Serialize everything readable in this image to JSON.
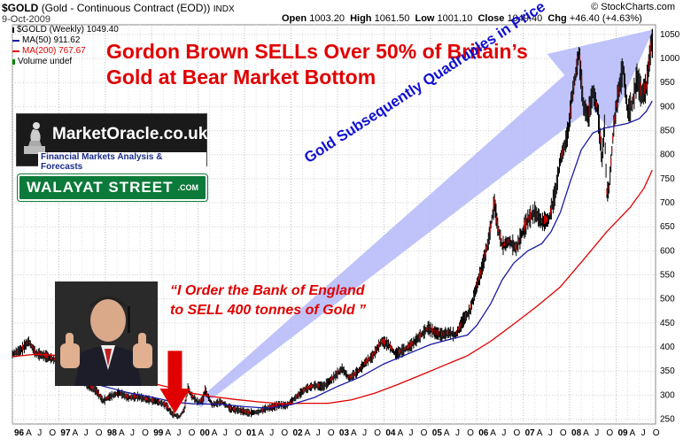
{
  "header": {
    "symbol": "$GOLD",
    "description": "(Gold - Continuous Contract (EOD))",
    "exchange": "INDX",
    "date": "9-Oct-2009",
    "open_label": "Open",
    "open": "1003.20",
    "high_label": "High",
    "high": "1061.50",
    "low_label": "Low",
    "low": "1001.10",
    "close_label": "Close",
    "close": "1049.40",
    "chg_label": "Chg",
    "chg": "+46.40 (+4.63%)",
    "source": "© StockCharts.com"
  },
  "legend": {
    "price": "$GOLD (Weekly) 1049.40",
    "ma50": "MA(50) 911.62",
    "ma200": "MA(200) 767.67",
    "volume": "Volume undef",
    "ma50_color": "#1a1aa0",
    "ma200_color": "#e00000"
  },
  "annotations": {
    "headline_line1": "Gordon Brown SELLs Over 50% of Britain’s",
    "headline_line2": "Gold at Bear Market Bottom",
    "arrow_text": "Gold Subsequently Quadruples in Price",
    "quote_line1": "“I Order the Bank of England",
    "quote_line2": "to SELL 400 tonnes of Gold ”",
    "logo_text": "MarketOracle.co.uk",
    "logo_sub": "Financial Markets Analysis & Forecasts",
    "walayat_text": "WALAYAT STREET",
    "walayat_com": ".COM"
  },
  "chart_data": {
    "type": "line",
    "ylim": [
      240,
      1070
    ],
    "xlim": [
      1996.0,
      2009.85
    ],
    "y_ticks": [
      250,
      300,
      350,
      400,
      450,
      500,
      550,
      600,
      650,
      700,
      750,
      800,
      850,
      900,
      950,
      1000,
      1050
    ],
    "x_ticks": [
      {
        "label": "96",
        "x": 1996.0,
        "major": true
      },
      {
        "label": "A",
        "x": 1996.25,
        "major": false
      },
      {
        "label": "J",
        "x": 1996.5,
        "major": false
      },
      {
        "label": "O",
        "x": 1996.75,
        "major": false
      },
      {
        "label": "97",
        "x": 1997.0,
        "major": true
      },
      {
        "label": "A",
        "x": 1997.25,
        "major": false
      },
      {
        "label": "J",
        "x": 1997.5,
        "major": false
      },
      {
        "label": "O",
        "x": 1997.75,
        "major": false
      },
      {
        "label": "98",
        "x": 1998.0,
        "major": true
      },
      {
        "label": "A",
        "x": 1998.25,
        "major": false
      },
      {
        "label": "J",
        "x": 1998.5,
        "major": false
      },
      {
        "label": "O",
        "x": 1998.75,
        "major": false
      },
      {
        "label": "99",
        "x": 1999.0,
        "major": true
      },
      {
        "label": "A",
        "x": 1999.25,
        "major": false
      },
      {
        "label": "J",
        "x": 1999.5,
        "major": false
      },
      {
        "label": "O",
        "x": 1999.75,
        "major": false
      },
      {
        "label": "00",
        "x": 2000.0,
        "major": true
      },
      {
        "label": "A",
        "x": 2000.25,
        "major": false
      },
      {
        "label": "J",
        "x": 2000.5,
        "major": false
      },
      {
        "label": "O",
        "x": 2000.75,
        "major": false
      },
      {
        "label": "01",
        "x": 2001.0,
        "major": true
      },
      {
        "label": "A",
        "x": 2001.25,
        "major": false
      },
      {
        "label": "J",
        "x": 2001.5,
        "major": false
      },
      {
        "label": "O",
        "x": 2001.75,
        "major": false
      },
      {
        "label": "02",
        "x": 2002.0,
        "major": true
      },
      {
        "label": "A",
        "x": 2002.25,
        "major": false
      },
      {
        "label": "J",
        "x": 2002.5,
        "major": false
      },
      {
        "label": "O",
        "x": 2002.75,
        "major": false
      },
      {
        "label": "03",
        "x": 2003.0,
        "major": true
      },
      {
        "label": "A",
        "x": 2003.25,
        "major": false
      },
      {
        "label": "J",
        "x": 2003.5,
        "major": false
      },
      {
        "label": "O",
        "x": 2003.75,
        "major": false
      },
      {
        "label": "04",
        "x": 2004.0,
        "major": true
      },
      {
        "label": "A",
        "x": 2004.25,
        "major": false
      },
      {
        "label": "J",
        "x": 2004.5,
        "major": false
      },
      {
        "label": "O",
        "x": 2004.75,
        "major": false
      },
      {
        "label": "05",
        "x": 2005.0,
        "major": true
      },
      {
        "label": "A",
        "x": 2005.25,
        "major": false
      },
      {
        "label": "J",
        "x": 2005.5,
        "major": false
      },
      {
        "label": "O",
        "x": 2005.75,
        "major": false
      },
      {
        "label": "06",
        "x": 2006.0,
        "major": true
      },
      {
        "label": "A",
        "x": 2006.25,
        "major": false
      },
      {
        "label": "J",
        "x": 2006.5,
        "major": false
      },
      {
        "label": "O",
        "x": 2006.75,
        "major": false
      },
      {
        "label": "07",
        "x": 2007.0,
        "major": true
      },
      {
        "label": "A",
        "x": 2007.25,
        "major": false
      },
      {
        "label": "J",
        "x": 2007.5,
        "major": false
      },
      {
        "label": "O",
        "x": 2007.75,
        "major": false
      },
      {
        "label": "08",
        "x": 2008.0,
        "major": true
      },
      {
        "label": "A",
        "x": 2008.25,
        "major": false
      },
      {
        "label": "J",
        "x": 2008.5,
        "major": false
      },
      {
        "label": "O",
        "x": 2008.75,
        "major": false
      },
      {
        "label": "09",
        "x": 2009.0,
        "major": true
      },
      {
        "label": "A",
        "x": 2009.25,
        "major": false
      },
      {
        "label": "J",
        "x": 2009.5,
        "major": false
      },
      {
        "label": "O",
        "x": 2009.75,
        "major": false
      }
    ],
    "series": [
      {
        "name": "$GOLD (Weekly)",
        "color": "#000000",
        "points": [
          [
            1996.0,
            385
          ],
          [
            1996.2,
            395
          ],
          [
            1996.35,
            412
          ],
          [
            1996.5,
            387
          ],
          [
            1996.75,
            380
          ],
          [
            1996.95,
            372
          ],
          [
            1997.1,
            350
          ],
          [
            1997.3,
            342
          ],
          [
            1997.5,
            330
          ],
          [
            1997.6,
            323
          ],
          [
            1997.8,
            310
          ],
          [
            1997.95,
            288
          ],
          [
            1998.1,
            297
          ],
          [
            1998.3,
            305
          ],
          [
            1998.5,
            295
          ],
          [
            1998.7,
            297
          ],
          [
            1998.9,
            291
          ],
          [
            1999.1,
            287
          ],
          [
            1999.3,
            280
          ],
          [
            1999.45,
            260
          ],
          [
            1999.6,
            255
          ],
          [
            1999.7,
            270
          ],
          [
            1999.78,
            315
          ],
          [
            1999.85,
            300
          ],
          [
            2000.0,
            285
          ],
          [
            2000.1,
            290
          ],
          [
            2000.15,
            310
          ],
          [
            2000.3,
            280
          ],
          [
            2000.5,
            286
          ],
          [
            2000.7,
            272
          ],
          [
            2000.9,
            268
          ],
          [
            2001.1,
            263
          ],
          [
            2001.3,
            265
          ],
          [
            2001.45,
            272
          ],
          [
            2001.6,
            275
          ],
          [
            2001.75,
            280
          ],
          [
            2001.9,
            278
          ],
          [
            2002.1,
            295
          ],
          [
            2002.3,
            312
          ],
          [
            2002.5,
            320
          ],
          [
            2002.7,
            318
          ],
          [
            2002.9,
            335
          ],
          [
            2003.1,
            355
          ],
          [
            2003.25,
            335
          ],
          [
            2003.45,
            350
          ],
          [
            2003.6,
            368
          ],
          [
            2003.75,
            380
          ],
          [
            2003.95,
            412
          ],
          [
            2004.1,
            405
          ],
          [
            2004.25,
            385
          ],
          [
            2004.45,
            395
          ],
          [
            2004.6,
            405
          ],
          [
            2004.8,
            425
          ],
          [
            2004.95,
            440
          ],
          [
            2005.1,
            430
          ],
          [
            2005.25,
            425
          ],
          [
            2005.4,
            430
          ],
          [
            2005.55,
            425
          ],
          [
            2005.7,
            455
          ],
          [
            2005.85,
            475
          ],
          [
            2005.95,
            510
          ],
          [
            2006.1,
            560
          ],
          [
            2006.25,
            620
          ],
          [
            2006.38,
            700
          ],
          [
            2006.45,
            650
          ],
          [
            2006.55,
            610
          ],
          [
            2006.7,
            620
          ],
          [
            2006.85,
            605
          ],
          [
            2006.95,
            630
          ],
          [
            2007.1,
            665
          ],
          [
            2007.25,
            680
          ],
          [
            2007.4,
            660
          ],
          [
            2007.55,
            665
          ],
          [
            2007.7,
            725
          ],
          [
            2007.8,
            790
          ],
          [
            2007.9,
            820
          ],
          [
            2007.97,
            850
          ],
          [
            2008.05,
            920
          ],
          [
            2008.15,
            980
          ],
          [
            2008.2,
            1010
          ],
          [
            2008.3,
            900
          ],
          [
            2008.4,
            880
          ],
          [
            2008.5,
            930
          ],
          [
            2008.6,
            895
          ],
          [
            2008.7,
            790
          ],
          [
            2008.75,
            860
          ],
          [
            2008.8,
            720
          ],
          [
            2008.85,
            730
          ],
          [
            2008.95,
            860
          ],
          [
            2009.05,
            930
          ],
          [
            2009.15,
            980
          ],
          [
            2009.25,
            890
          ],
          [
            2009.35,
            905
          ],
          [
            2009.45,
            960
          ],
          [
            2009.55,
            925
          ],
          [
            2009.65,
            940
          ],
          [
            2009.72,
            1000
          ],
          [
            2009.78,
            1049.4
          ]
        ]
      },
      {
        "name": "MA(50)",
        "color": "#1a1aa0",
        "points": [
          [
            1997.4,
            340
          ],
          [
            1997.9,
            320
          ],
          [
            1998.5,
            305
          ],
          [
            1999.0,
            296
          ],
          [
            1999.5,
            285
          ],
          [
            1999.9,
            282
          ],
          [
            2000.5,
            281
          ],
          [
            2001.0,
            276
          ],
          [
            2001.5,
            273
          ],
          [
            2002.0,
            280
          ],
          [
            2002.5,
            295
          ],
          [
            2003.0,
            318
          ],
          [
            2003.5,
            338
          ],
          [
            2004.0,
            365
          ],
          [
            2004.5,
            385
          ],
          [
            2005.0,
            405
          ],
          [
            2005.5,
            418
          ],
          [
            2005.8,
            425
          ],
          [
            2006.0,
            445
          ],
          [
            2006.3,
            490
          ],
          [
            2006.55,
            540
          ],
          [
            2006.8,
            575
          ],
          [
            2007.1,
            600
          ],
          [
            2007.4,
            615
          ],
          [
            2007.6,
            640
          ],
          [
            2007.8,
            680
          ],
          [
            2008.0,
            740
          ],
          [
            2008.25,
            810
          ],
          [
            2008.5,
            845
          ],
          [
            2008.75,
            855
          ],
          [
            2009.0,
            860
          ],
          [
            2009.25,
            865
          ],
          [
            2009.5,
            875
          ],
          [
            2009.65,
            890
          ],
          [
            2009.78,
            912
          ]
        ]
      },
      {
        "name": "MA(200)",
        "color": "#e00000",
        "points": [
          [
            1996.0,
            380
          ],
          [
            1996.5,
            385
          ],
          [
            1996.9,
            383
          ],
          [
            1997.3,
            370
          ],
          [
            1997.8,
            355
          ],
          [
            1998.3,
            345
          ],
          [
            1998.8,
            330
          ],
          [
            1999.3,
            318
          ],
          [
            1999.8,
            305
          ],
          [
            2000.3,
            297
          ],
          [
            2000.8,
            291
          ],
          [
            2001.3,
            286
          ],
          [
            2001.8,
            282
          ],
          [
            2002.3,
            283
          ],
          [
            2002.8,
            283
          ],
          [
            2003.3,
            290
          ],
          [
            2003.8,
            304
          ],
          [
            2004.3,
            322
          ],
          [
            2004.8,
            342
          ],
          [
            2005.3,
            362
          ],
          [
            2005.8,
            382
          ],
          [
            2006.3,
            412
          ],
          [
            2006.8,
            448
          ],
          [
            2007.3,
            485
          ],
          [
            2007.8,
            525
          ],
          [
            2008.3,
            582
          ],
          [
            2008.8,
            640
          ],
          [
            2009.3,
            690
          ],
          [
            2009.6,
            730
          ],
          [
            2009.78,
            768
          ]
        ]
      }
    ],
    "markers": {
      "sell_arrow_x": 1999.5,
      "sell_arrow_y_top": 392,
      "sell_arrow_y_bottom": 262,
      "rally_arrow_from": [
        2000.0,
        280
      ],
      "rally_arrow_to": [
        2009.8,
        1060
      ]
    }
  }
}
